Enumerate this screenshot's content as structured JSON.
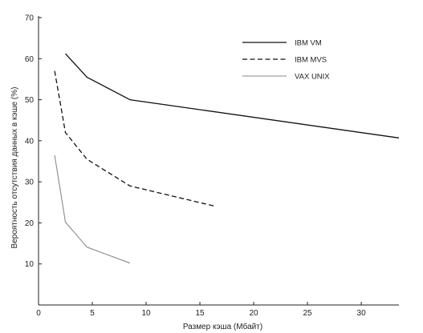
{
  "chart_data": {
    "type": "line",
    "title": "",
    "xlabel": "Размер кэша (Мбайт)",
    "ylabel": "Вероятность отсутствия данных в кэше (%)",
    "xlim": [
      0,
      33.5
    ],
    "ylim": [
      0,
      70
    ],
    "xticks": [
      0,
      5,
      10,
      15,
      20,
      25,
      30
    ],
    "yticks": [
      10,
      20,
      30,
      40,
      50,
      60,
      70
    ],
    "grid": false,
    "legend": "top-right",
    "series": [
      {
        "name": "IBM VM",
        "style": "solid",
        "color": "#111111",
        "points": [
          [
            2.5,
            61.2
          ],
          [
            4.5,
            55.5
          ],
          [
            8.5,
            50
          ],
          [
            33.5,
            40.7
          ]
        ]
      },
      {
        "name": "IBM MVS",
        "style": "dashed",
        "color": "#111111",
        "points": [
          [
            1.5,
            57
          ],
          [
            2.5,
            42
          ],
          [
            4.5,
            35.5
          ],
          [
            8.5,
            29
          ],
          [
            16.5,
            24
          ]
        ]
      },
      {
        "name": "VAX UNIX",
        "style": "solid-light",
        "color": "#8a8a8a",
        "points": [
          [
            1.5,
            36.5
          ],
          [
            2.5,
            20.2
          ],
          [
            4.5,
            14.1
          ],
          [
            8.5,
            10.2
          ]
        ]
      }
    ]
  }
}
